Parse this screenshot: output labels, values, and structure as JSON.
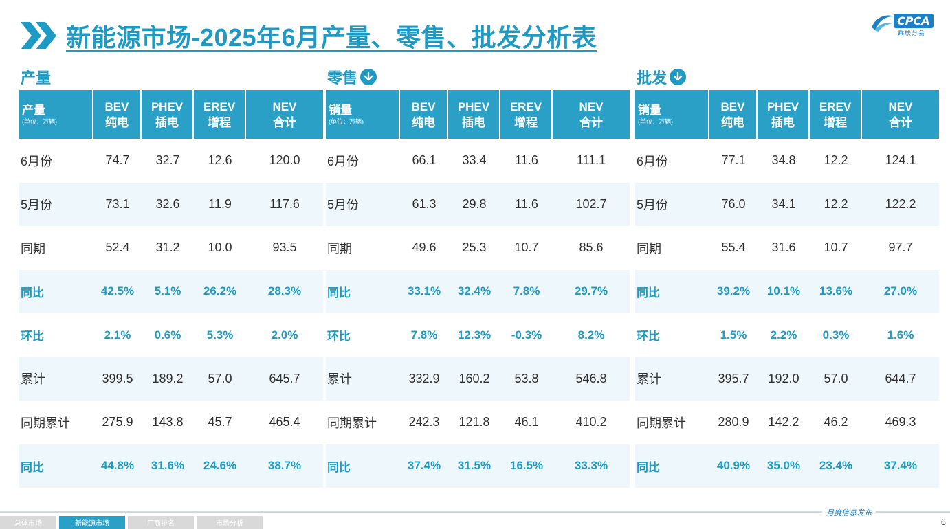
{
  "header": {
    "title": "新能源市场-2025年6月产量、零售、批发分析表",
    "logo_text": "CPCA",
    "logo_sub": "乘联分会"
  },
  "sections": [
    {
      "label": "产量",
      "has_icon": false,
      "header_first": {
        "main": "产量",
        "unit": "(单位：万辆)"
      },
      "columns": [
        {
          "top": "BEV",
          "bottom": "纯电"
        },
        {
          "top": "PHEV",
          "bottom": "插电"
        },
        {
          "top": "EREV",
          "bottom": "增程"
        },
        {
          "top": "NEV",
          "bottom": "合计"
        }
      ],
      "rows": [
        {
          "label": "6月份",
          "values": [
            "74.7",
            "32.7",
            "12.6",
            "120.0"
          ],
          "pct": false
        },
        {
          "label": "5月份",
          "values": [
            "73.1",
            "32.6",
            "11.9",
            "117.6"
          ],
          "pct": false
        },
        {
          "label": "同期",
          "values": [
            "52.4",
            "31.2",
            "10.0",
            "93.5"
          ],
          "pct": false
        },
        {
          "label": "同比",
          "values": [
            "42.5%",
            "5.1%",
            "26.2%",
            "28.3%"
          ],
          "pct": true
        },
        {
          "label": "环比",
          "values": [
            "2.1%",
            "0.6%",
            "5.3%",
            "2.0%"
          ],
          "pct": true
        },
        {
          "label": "累计",
          "values": [
            "399.5",
            "189.2",
            "57.0",
            "645.7"
          ],
          "pct": false
        },
        {
          "label": "同期累计",
          "values": [
            "275.9",
            "143.8",
            "45.7",
            "465.4"
          ],
          "pct": false
        },
        {
          "label": "同比",
          "values": [
            "44.8%",
            "31.6%",
            "24.6%",
            "38.7%"
          ],
          "pct": true
        }
      ]
    },
    {
      "label": "零售",
      "has_icon": true,
      "header_first": {
        "main": "销量",
        "unit": "(单位：万辆)"
      },
      "columns": [
        {
          "top": "BEV",
          "bottom": "纯电"
        },
        {
          "top": "PHEV",
          "bottom": "插电"
        },
        {
          "top": "EREV",
          "bottom": "增程"
        },
        {
          "top": "NEV",
          "bottom": "合计"
        }
      ],
      "rows": [
        {
          "label": "6月份",
          "values": [
            "66.1",
            "33.4",
            "11.6",
            "111.1"
          ],
          "pct": false
        },
        {
          "label": "5月份",
          "values": [
            "61.3",
            "29.8",
            "11.6",
            "102.7"
          ],
          "pct": false
        },
        {
          "label": "同期",
          "values": [
            "49.6",
            "25.3",
            "10.7",
            "85.6"
          ],
          "pct": false
        },
        {
          "label": "同比",
          "values": [
            "33.1%",
            "32.4%",
            "7.8%",
            "29.7%"
          ],
          "pct": true
        },
        {
          "label": "环比",
          "values": [
            "7.8%",
            "12.3%",
            "-0.3%",
            "8.2%"
          ],
          "pct": true
        },
        {
          "label": "累计",
          "values": [
            "332.9",
            "160.2",
            "53.8",
            "546.8"
          ],
          "pct": false
        },
        {
          "label": "同期累计",
          "values": [
            "242.3",
            "121.8",
            "46.1",
            "410.2"
          ],
          "pct": false
        },
        {
          "label": "同比",
          "values": [
            "37.4%",
            "31.5%",
            "16.5%",
            "33.3%"
          ],
          "pct": true
        }
      ]
    },
    {
      "label": "批发",
      "has_icon": true,
      "header_first": {
        "main": "销量",
        "unit": "(单位：万辆)"
      },
      "columns": [
        {
          "top": "BEV",
          "bottom": "纯电"
        },
        {
          "top": "PHEV",
          "bottom": "插电"
        },
        {
          "top": "EREV",
          "bottom": "增程"
        },
        {
          "top": "NEV",
          "bottom": "合计"
        }
      ],
      "rows": [
        {
          "label": "6月份",
          "values": [
            "77.1",
            "34.8",
            "12.2",
            "124.1"
          ],
          "pct": false
        },
        {
          "label": "5月份",
          "values": [
            "76.0",
            "34.1",
            "12.2",
            "122.2"
          ],
          "pct": false
        },
        {
          "label": "同期",
          "values": [
            "55.4",
            "31.6",
            "10.7",
            "97.7"
          ],
          "pct": false
        },
        {
          "label": "同比",
          "values": [
            "39.2%",
            "10.1%",
            "13.6%",
            "27.0%"
          ],
          "pct": true
        },
        {
          "label": "环比",
          "values": [
            "1.5%",
            "2.2%",
            "0.3%",
            "1.6%"
          ],
          "pct": true
        },
        {
          "label": "累计",
          "values": [
            "395.7",
            "192.0",
            "57.0",
            "644.7"
          ],
          "pct": false
        },
        {
          "label": "同期累计",
          "values": [
            "280.9",
            "142.2",
            "46.2",
            "469.3"
          ],
          "pct": false
        },
        {
          "label": "同比",
          "values": [
            "40.9%",
            "35.0%",
            "23.4%",
            "37.4%"
          ],
          "pct": true
        }
      ]
    }
  ],
  "footer": {
    "tabs": [
      {
        "label": "总体市场",
        "active": false
      },
      {
        "label": "新能源市场",
        "active": true
      },
      {
        "label": "厂商排名",
        "active": false
      },
      {
        "label": "市场分析",
        "active": false
      }
    ],
    "note": "月度信息发布",
    "page_number": "6"
  },
  "colors": {
    "accent": "#1e9bc4",
    "header_bg": "#2aa0c6",
    "alt_row_bg": "#eef7fb"
  }
}
